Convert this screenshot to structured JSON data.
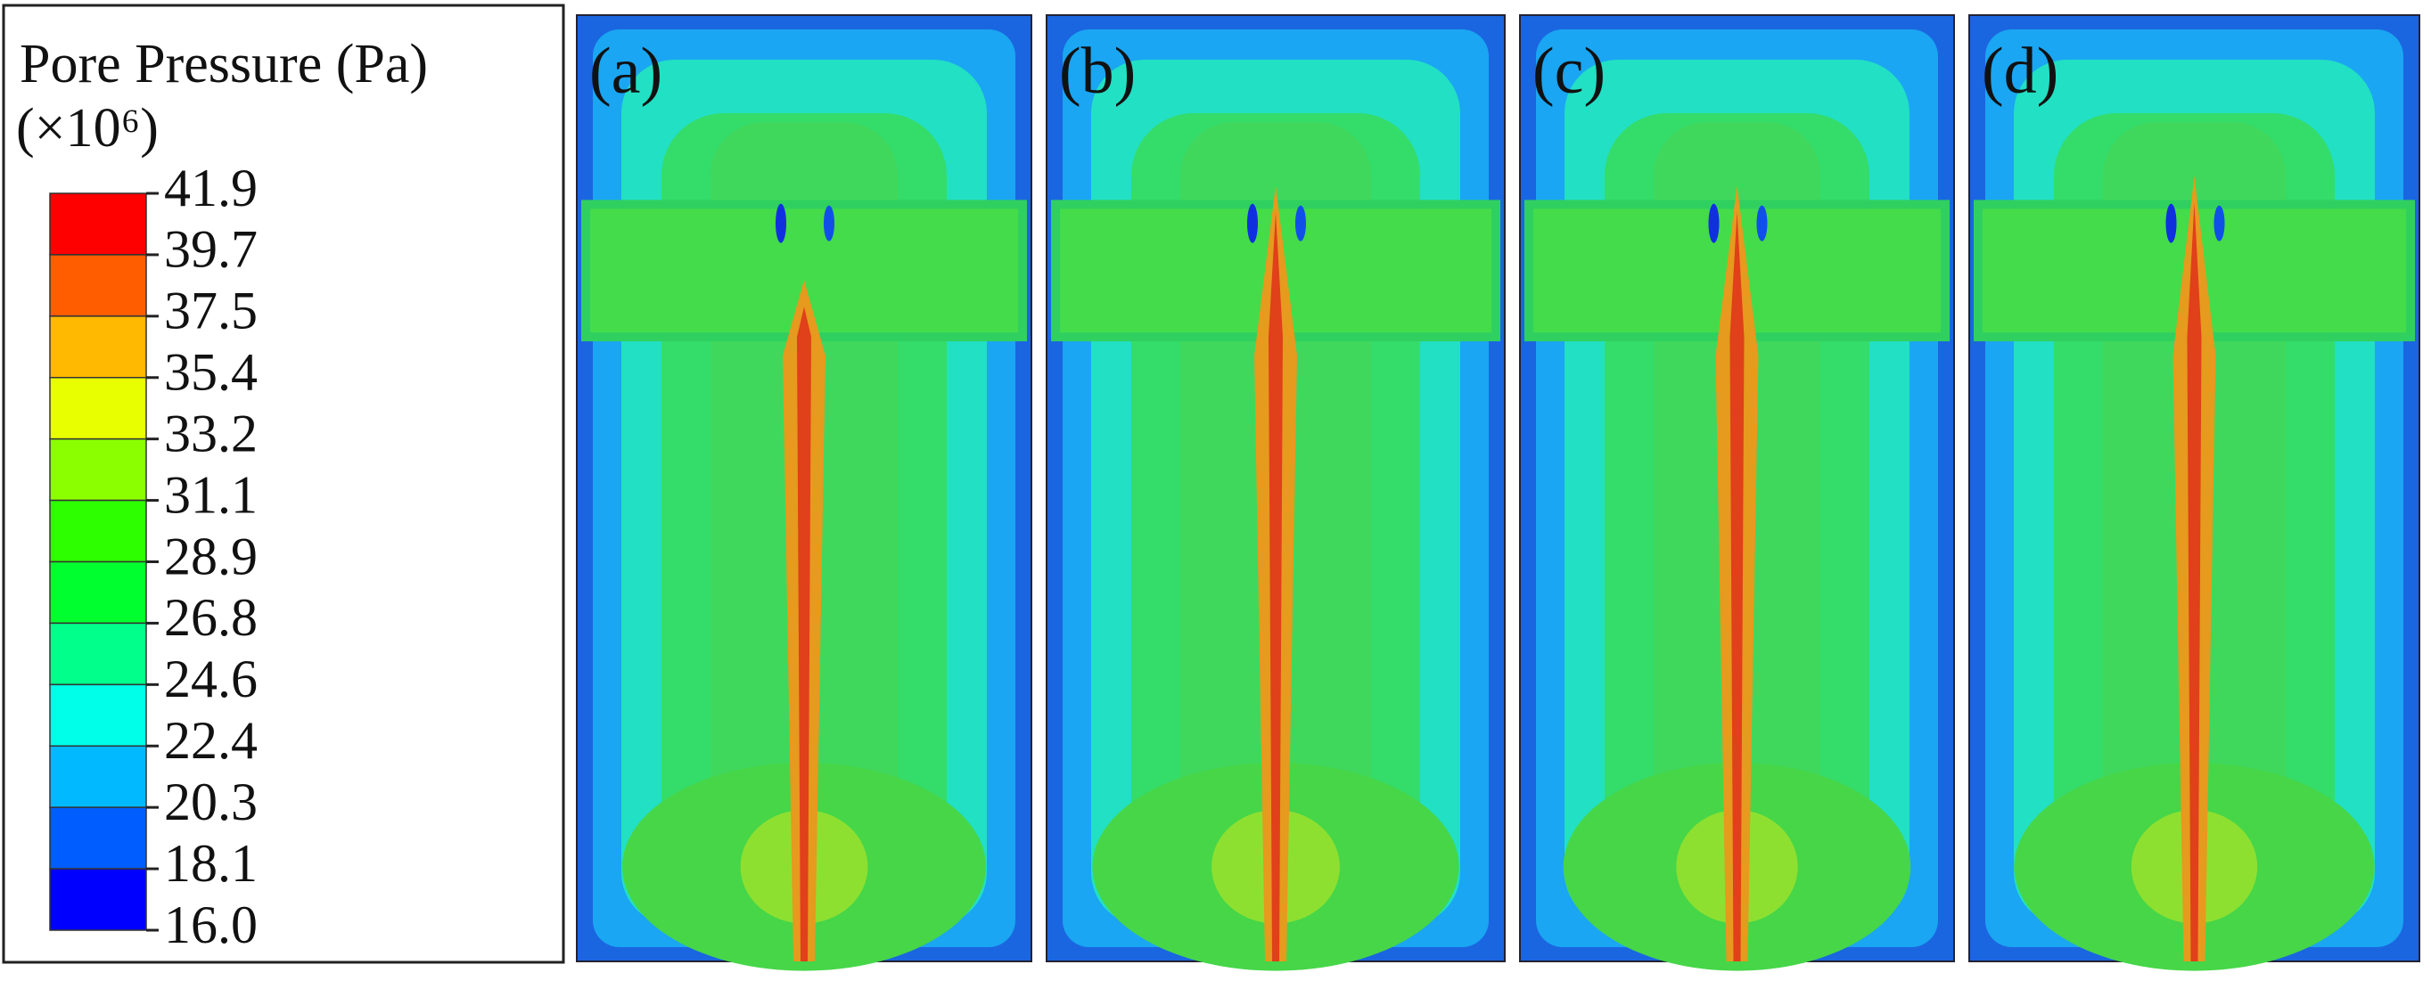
{
  "legend": {
    "title": "Pore Pressure  (Pa)",
    "scale": "(×10⁶)",
    "ticks": [
      "41.9",
      "39.7",
      "37.5",
      "35.4",
      "33.2",
      "31.1",
      "28.9",
      "26.8",
      "24.6",
      "22.4",
      "20.3",
      "18.1",
      "16.0"
    ],
    "colors": [
      "#ff0000",
      "#ff5d00",
      "#ffb900",
      "#e8ff00",
      "#8bff00",
      "#2eff00",
      "#00ff2e",
      "#00ff8b",
      "#00ffe8",
      "#00b9ff",
      "#005dff",
      "#0000ff"
    ]
  },
  "panels": [
    {
      "label": "(a)"
    },
    {
      "label": "(b)"
    },
    {
      "label": "(c)"
    },
    {
      "label": "(d)"
    }
  ]
}
